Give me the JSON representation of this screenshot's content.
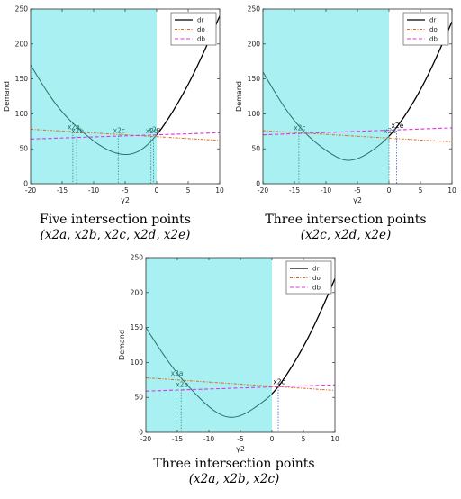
{
  "chart_data": [
    {
      "type": "line",
      "xlabel": "γ2",
      "ylabel": "Demand",
      "xlim": [
        -20,
        10
      ],
      "ylim": [
        0,
        250
      ],
      "xticks": [
        -20,
        -15,
        -10,
        -5,
        0,
        5,
        10
      ],
      "yticks": [
        0,
        50,
        100,
        150,
        200,
        250
      ],
      "shaded_region": [
        -20,
        0
      ],
      "legend_position": "top-right",
      "series": [
        {
          "name": "dr",
          "x": [
            -20,
            -16,
            -12,
            -9,
            -6,
            -3,
            0,
            3,
            6,
            10
          ],
          "y": [
            170,
            114,
            76,
            55,
            43,
            46,
            70,
            110,
            160,
            240
          ]
        },
        {
          "name": "do",
          "x": [
            -20,
            10
          ],
          "y": [
            78,
            62
          ]
        },
        {
          "name": "db",
          "x": [
            -20,
            10
          ],
          "y": [
            64,
            73
          ]
        }
      ],
      "annotations": [
        {
          "text": "x2a",
          "x": -13.3,
          "y": 74
        },
        {
          "text": "x2b",
          "x": -12.7,
          "y": 68
        },
        {
          "text": "x2c",
          "x": -6.1,
          "y": 69
        },
        {
          "text": "x2d",
          "x": -0.9,
          "y": 68
        },
        {
          "text": "x2e",
          "x": -0.5,
          "y": 70
        }
      ],
      "caption": "Five intersection points",
      "caption_points": "(x2a, x2b, x2c, x2d, x2e)"
    },
    {
      "type": "line",
      "xlabel": "γ2",
      "ylabel": "Demand",
      "xlim": [
        -20,
        10
      ],
      "ylim": [
        0,
        250
      ],
      "xticks": [
        -20,
        -15,
        -10,
        -5,
        0,
        5,
        10
      ],
      "yticks": [
        0,
        50,
        100,
        150,
        200,
        250
      ],
      "shaded_region": [
        -20,
        0
      ],
      "legend_position": "top-right",
      "series": [
        {
          "name": "dr",
          "x": [
            -20,
            -16,
            -12,
            -9,
            -7,
            -5,
            -2,
            0,
            3,
            6,
            10
          ],
          "y": [
            160,
            102,
            62,
            42,
            34,
            36,
            52,
            68,
            104,
            152,
            232
          ]
        },
        {
          "name": "do",
          "x": [
            -20,
            10
          ],
          "y": [
            76,
            60
          ]
        },
        {
          "name": "db",
          "x": [
            -20,
            10
          ],
          "y": [
            70,
            80
          ]
        }
      ],
      "annotations": [
        {
          "text": "x2c",
          "x": -14.3,
          "y": 73
        },
        {
          "text": "x2d",
          "x": 0,
          "y": 68
        },
        {
          "text": "x2e",
          "x": 1.2,
          "y": 76
        }
      ],
      "caption": "Three intersection points",
      "caption_points": "(x2c, x2d, x2e)"
    },
    {
      "type": "line",
      "xlabel": "γ2",
      "ylabel": "Demand",
      "xlim": [
        -20,
        10
      ],
      "ylim": [
        0,
        250
      ],
      "xticks": [
        -20,
        -15,
        -10,
        -5,
        0,
        5,
        10
      ],
      "yticks": [
        0,
        50,
        100,
        150,
        200,
        250
      ],
      "shaded_region": [
        -20,
        0
      ],
      "legend_position": "top-right",
      "series": [
        {
          "name": "dr",
          "x": [
            -20,
            -16,
            -12,
            -9,
            -7,
            -5,
            -2,
            0,
            3,
            6,
            10
          ],
          "y": [
            150,
            96,
            54,
            30,
            22,
            24,
            40,
            55,
            92,
            140,
            220
          ]
        },
        {
          "name": "do",
          "x": [
            -20,
            10
          ],
          "y": [
            78,
            60
          ]
        },
        {
          "name": "db",
          "x": [
            -20,
            10
          ],
          "y": [
            59,
            68
          ]
        }
      ],
      "annotations": [
        {
          "text": "x2a",
          "x": -15.2,
          "y": 77
        },
        {
          "text": "x2b",
          "x": -14.4,
          "y": 61
        },
        {
          "text": "x2c",
          "x": 1,
          "y": 65
        }
      ],
      "caption": "Three intersection points",
      "caption_points": "(x2a, x2b, x2c)"
    }
  ],
  "colors": {
    "shade": "#a8f0f2",
    "dr_left": "#2e6e6a",
    "dr_right": "#000000",
    "do": "#e06a1e",
    "db": "#e233e2",
    "marker_left": "#3a8a8a",
    "marker_right": "#3c64c8"
  }
}
